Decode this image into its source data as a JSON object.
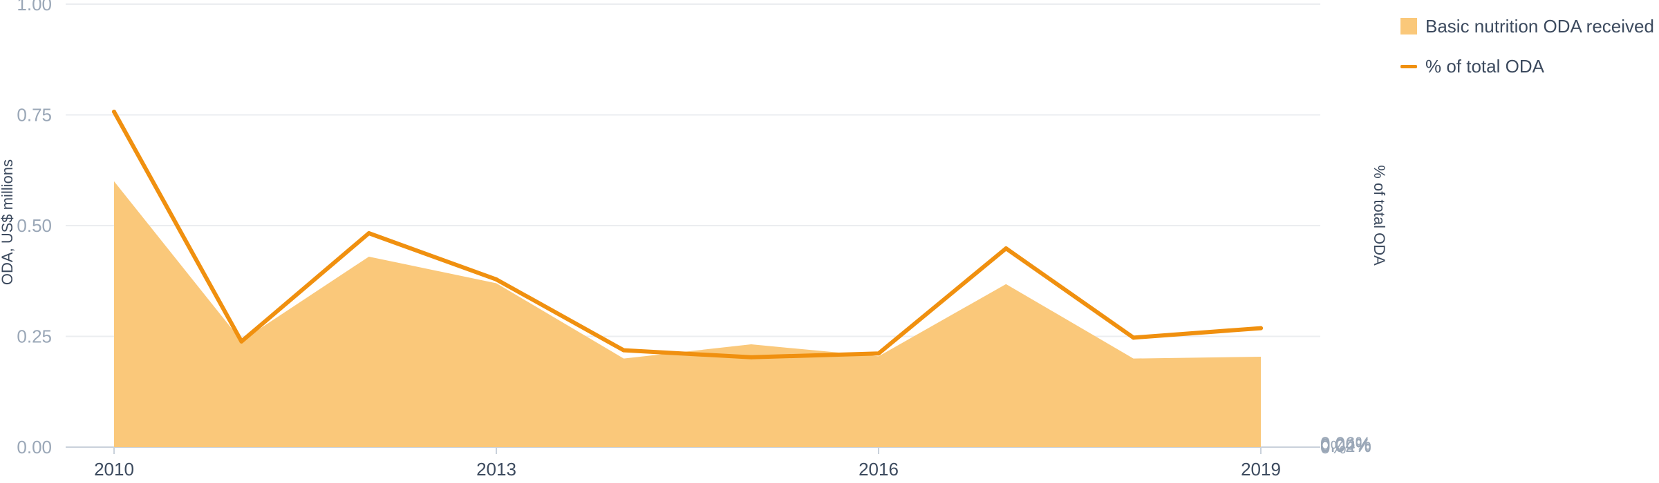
{
  "colors": {
    "area": "#fac87a",
    "line": "#f0900f",
    "grid": "#ebedf0",
    "axis": "#c9d1db"
  },
  "chart_data": {
    "type": "area",
    "x": [
      2010,
      2011,
      2012,
      2013,
      2014,
      2015,
      2016,
      2017,
      2018,
      2019
    ],
    "series": [
      {
        "name": "Basic nutrition ODA received",
        "type": "area",
        "axis": "left",
        "values": [
          0.6,
          0.24,
          0.43,
          0.37,
          0.2,
          0.232,
          0.205,
          0.368,
          0.2,
          0.204
        ]
      },
      {
        "name": "% of total ODA",
        "type": "line",
        "axis": "right",
        "values": [
          0.053,
          0.0167,
          0.0338,
          0.0265,
          0.0153,
          0.0142,
          0.0148,
          0.0314,
          0.0173,
          0.0188
        ]
      }
    ],
    "x_ticks": [
      "2010",
      "2013",
      "2016",
      "2019"
    ],
    "y_left": {
      "label": "ODA, US$ millions",
      "ylim": [
        0,
        1
      ],
      "ticks": [
        "0.00",
        "0.25",
        "0.50",
        "0.75",
        "1.00"
      ]
    },
    "y_right": {
      "label": "% of total ODA",
      "ylim": [
        0,
        0.07
      ],
      "ticks": [
        "0%",
        "0.02%",
        "0.04%",
        "0.06%"
      ]
    },
    "grid": true,
    "legend_position": "top-right"
  }
}
